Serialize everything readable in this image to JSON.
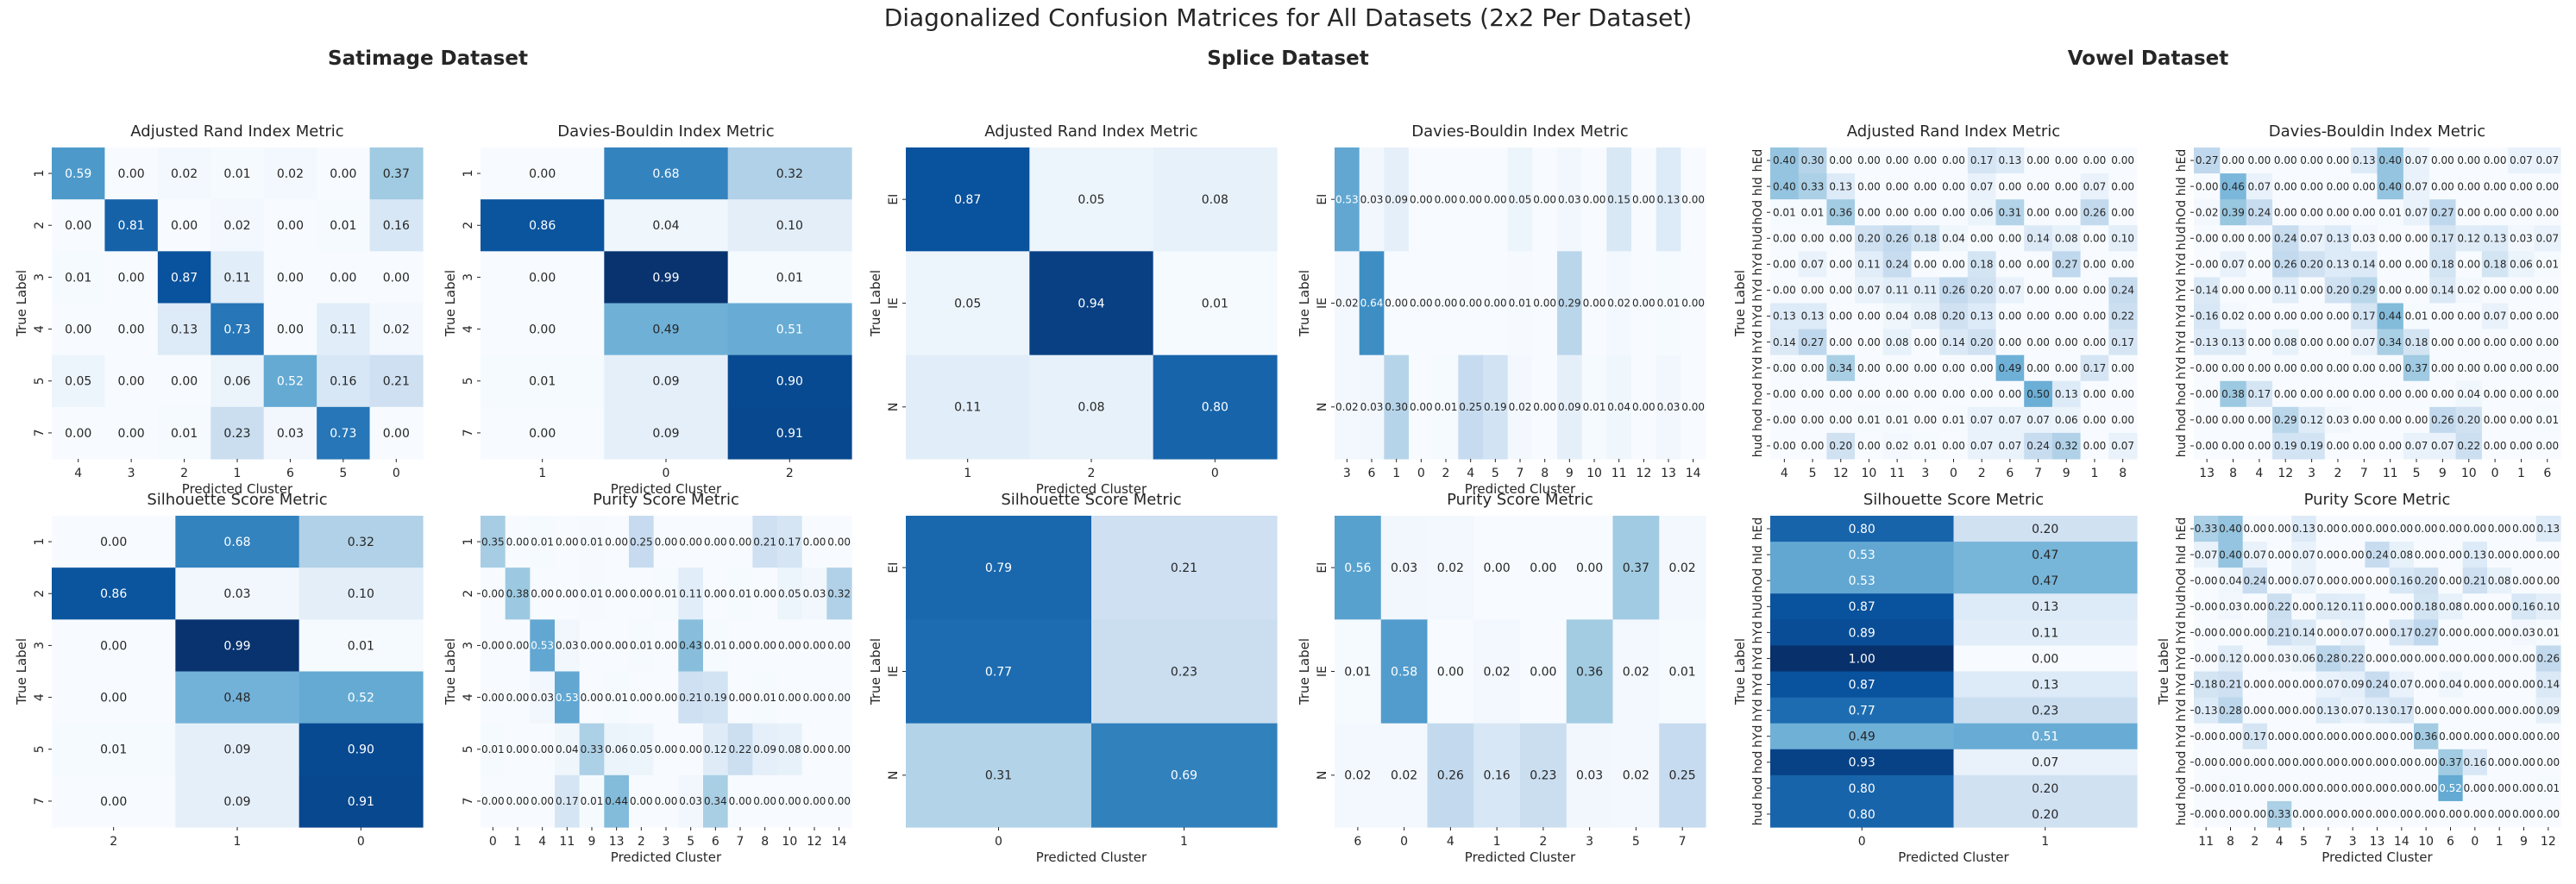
{
  "figure": {
    "title": "Diagonalized Confusion Matrices for All Datasets (2x2 Per Dataset)"
  },
  "datasets": [
    {
      "title": "Satimage Dataset"
    },
    {
      "title": "Splice Dataset"
    },
    {
      "title": "Vowel Dataset"
    }
  ],
  "colormap": {
    "name": "Blues",
    "stops": [
      "#f7fbff",
      "#deebf7",
      "#c6dbef",
      "#9ecae1",
      "#6baed6",
      "#4292c6",
      "#2171b5",
      "#08519c",
      "#08306b"
    ],
    "text_light": "#ffffff",
    "text_dark": "#262626"
  },
  "chart_data": [
    {
      "type": "heatmap",
      "dataset": "Satimage Dataset",
      "title": "Adjusted Rand Index Metric",
      "xlabel": "Predicted Cluster",
      "ylabel": "True Label",
      "x_ticks": [
        "4",
        "3",
        "2",
        "1",
        "6",
        "5",
        "0"
      ],
      "y_ticks": [
        "1",
        "2",
        "3",
        "4",
        "5",
        "7"
      ],
      "values": [
        [
          0.59,
          0.0,
          0.02,
          0.01,
          0.02,
          0.0,
          0.37
        ],
        [
          0.0,
          0.81,
          0.0,
          0.02,
          0.0,
          0.01,
          0.16
        ],
        [
          0.01,
          0.0,
          0.87,
          0.11,
          0.0,
          0.0,
          0.0
        ],
        [
          0.0,
          0.0,
          0.13,
          0.73,
          0.0,
          0.11,
          0.02
        ],
        [
          0.05,
          0.0,
          0.0,
          0.06,
          0.52,
          0.16,
          0.21
        ],
        [
          0.0,
          0.0,
          0.01,
          0.23,
          0.03,
          0.73,
          0.0
        ]
      ]
    },
    {
      "type": "heatmap",
      "dataset": "Satimage Dataset",
      "title": "Davies-Bouldin Index Metric",
      "xlabel": "Predicted Cluster",
      "ylabel": "True Label",
      "x_ticks": [
        "1",
        "0",
        "2"
      ],
      "y_ticks": [
        "1",
        "2",
        "3",
        "4",
        "5",
        "7"
      ],
      "values": [
        [
          0.0,
          0.68,
          0.32
        ],
        [
          0.86,
          0.04,
          0.1
        ],
        [
          0.0,
          0.99,
          0.01
        ],
        [
          0.0,
          0.49,
          0.51
        ],
        [
          0.01,
          0.09,
          0.9
        ],
        [
          0.0,
          0.09,
          0.91
        ]
      ]
    },
    {
      "type": "heatmap",
      "dataset": "Splice Dataset",
      "title": "Adjusted Rand Index Metric",
      "xlabel": "Predicted Cluster",
      "ylabel": "True Label",
      "x_ticks": [
        "1",
        "2",
        "0"
      ],
      "y_ticks": [
        "EI",
        "IE",
        "N"
      ],
      "values": [
        [
          0.87,
          0.05,
          0.08
        ],
        [
          0.05,
          0.94,
          0.01
        ],
        [
          0.11,
          0.08,
          0.8
        ]
      ]
    },
    {
      "type": "heatmap",
      "dataset": "Splice Dataset",
      "title": "Davies-Bouldin Index Metric",
      "xlabel": "Predicted Cluster",
      "ylabel": "True Label",
      "x_ticks": [
        "3",
        "6",
        "1",
        "0",
        "2",
        "4",
        "5",
        "7",
        "8",
        "9",
        "10",
        "11",
        "12",
        "13",
        "14"
      ],
      "y_ticks": [
        "EI",
        "IE",
        "N"
      ],
      "values": [
        [
          0.53,
          0.03,
          0.09,
          0.0,
          0.0,
          0.0,
          0.0,
          0.05,
          0.0,
          0.03,
          0.0,
          0.15,
          0.0,
          0.13,
          0.0
        ],
        [
          0.02,
          0.64,
          0.0,
          0.0,
          0.0,
          0.0,
          0.0,
          0.01,
          0.0,
          0.29,
          0.0,
          0.02,
          0.0,
          0.01,
          0.0
        ],
        [
          0.02,
          0.03,
          0.3,
          0.0,
          0.01,
          0.25,
          0.19,
          0.02,
          0.0,
          0.09,
          0.01,
          0.04,
          0.0,
          0.03,
          0.0
        ]
      ]
    },
    {
      "type": "heatmap",
      "dataset": "Vowel Dataset",
      "title": "Adjusted Rand Index Metric",
      "xlabel": "",
      "ylabel": "True Label",
      "x_ticks": [
        "4",
        "5",
        "12",
        "10",
        "11",
        "3",
        "0",
        "2",
        "6",
        "7",
        "9",
        "1",
        "8"
      ],
      "y_ticks": [
        "hEd",
        "hId",
        "hOd",
        "hUd",
        "hYd",
        "hYd",
        "hYd",
        "hYd",
        "hYd",
        "hod",
        "hod",
        "hud"
      ],
      "values": [
        [
          0.4,
          0.3,
          0.0,
          0.0,
          0.0,
          0.0,
          0.0,
          0.17,
          0.13,
          0.0,
          0.0,
          0.0,
          0.0
        ],
        [
          0.4,
          0.33,
          0.13,
          0.0,
          0.0,
          0.0,
          0.0,
          0.07,
          0.0,
          0.0,
          0.0,
          0.07,
          0.0
        ],
        [
          0.01,
          0.01,
          0.36,
          0.0,
          0.0,
          0.0,
          0.0,
          0.06,
          0.31,
          0.0,
          0.0,
          0.26,
          0.0
        ],
        [
          0.0,
          0.0,
          0.0,
          0.2,
          0.26,
          0.18,
          0.04,
          0.0,
          0.0,
          0.14,
          0.08,
          0.0,
          0.1
        ],
        [
          0.0,
          0.07,
          0.0,
          0.11,
          0.24,
          0.0,
          0.0,
          0.18,
          0.0,
          0.0,
          0.27,
          0.0,
          0.0
        ],
        [
          0.0,
          0.0,
          0.0,
          0.07,
          0.11,
          0.11,
          0.26,
          0.2,
          0.07,
          0.0,
          0.0,
          0.0,
          0.24
        ],
        [
          0.13,
          0.13,
          0.0,
          0.0,
          0.04,
          0.08,
          0.2,
          0.13,
          0.0,
          0.0,
          0.0,
          0.0,
          0.22
        ],
        [
          0.14,
          0.27,
          0.0,
          0.0,
          0.08,
          0.0,
          0.14,
          0.2,
          0.0,
          0.0,
          0.0,
          0.0,
          0.17
        ],
        [
          0.0,
          0.0,
          0.34,
          0.0,
          0.0,
          0.0,
          0.0,
          0.0,
          0.49,
          0.0,
          0.0,
          0.17,
          0.0
        ],
        [
          0.0,
          0.0,
          0.0,
          0.0,
          0.0,
          0.0,
          0.0,
          0.0,
          0.0,
          0.5,
          0.13,
          0.0,
          0.0
        ],
        [
          0.0,
          0.0,
          0.0,
          0.01,
          0.01,
          0.0,
          0.01,
          0.07,
          0.07,
          0.07,
          0.06,
          0.0,
          0.0
        ],
        [
          0.0,
          0.0,
          0.2,
          0.0,
          0.02,
          0.01,
          0.0,
          0.07,
          0.07,
          0.24,
          0.32,
          0.0,
          0.07
        ]
      ]
    },
    {
      "type": "heatmap",
      "dataset": "Vowel Dataset",
      "title": "Davies-Bouldin Index Metric",
      "xlabel": "",
      "ylabel": "",
      "x_ticks": [
        "13",
        "8",
        "4",
        "12",
        "3",
        "2",
        "7",
        "11",
        "5",
        "9",
        "10",
        "0",
        "1",
        "6"
      ],
      "y_ticks": [
        "hEd",
        "hId",
        "hOd",
        "hUd",
        "hYd",
        "hYd",
        "hYd",
        "hYd",
        "hYd",
        "hod",
        "hod",
        "hud"
      ],
      "values": [
        [
          0.27,
          0.0,
          0.0,
          0.0,
          0.0,
          0.0,
          0.13,
          0.4,
          0.07,
          0.0,
          0.0,
          0.0,
          0.07,
          0.07
        ],
        [
          0.0,
          0.46,
          0.07,
          0.0,
          0.0,
          0.0,
          0.0,
          0.4,
          0.07,
          0.0,
          0.0,
          0.0,
          0.0,
          0.0
        ],
        [
          0.02,
          0.39,
          0.24,
          0.0,
          0.0,
          0.0,
          0.0,
          0.01,
          0.07,
          0.27,
          0.0,
          0.0,
          0.0,
          0.0
        ],
        [
          0.0,
          0.0,
          0.0,
          0.24,
          0.07,
          0.13,
          0.03,
          0.0,
          0.0,
          0.17,
          0.12,
          0.13,
          0.03,
          0.07
        ],
        [
          0.0,
          0.07,
          0.0,
          0.26,
          0.2,
          0.13,
          0.14,
          0.0,
          0.0,
          0.18,
          0.0,
          0.18,
          0.06,
          0.01
        ],
        [
          0.14,
          0.0,
          0.0,
          0.11,
          0.0,
          0.2,
          0.29,
          0.0,
          0.0,
          0.14,
          0.02,
          0.0,
          0.0,
          0.0
        ],
        [
          0.16,
          0.02,
          0.0,
          0.0,
          0.0,
          0.0,
          0.17,
          0.44,
          0.01,
          0.0,
          0.0,
          0.07,
          0.0,
          0.0
        ],
        [
          0.13,
          0.13,
          0.0,
          0.08,
          0.0,
          0.0,
          0.07,
          0.34,
          0.18,
          0.0,
          0.0,
          0.0,
          0.0,
          0.0
        ],
        [
          0.0,
          0.0,
          0.0,
          0.0,
          0.0,
          0.0,
          0.0,
          0.0,
          0.37,
          0.0,
          0.0,
          0.0,
          0.0,
          0.0
        ],
        [
          0.0,
          0.38,
          0.17,
          0.0,
          0.0,
          0.0,
          0.0,
          0.0,
          0.0,
          0.0,
          0.04,
          0.0,
          0.0,
          0.0
        ],
        [
          0.0,
          0.0,
          0.0,
          0.29,
          0.12,
          0.03,
          0.0,
          0.0,
          0.0,
          0.26,
          0.2,
          0.0,
          0.0,
          0.01
        ],
        [
          0.0,
          0.0,
          0.0,
          0.19,
          0.19,
          0.0,
          0.0,
          0.0,
          0.07,
          0.07,
          0.22,
          0.0,
          0.0,
          0.0
        ]
      ]
    },
    {
      "type": "heatmap",
      "dataset": "Satimage Dataset",
      "title": "Silhouette Score Metric",
      "xlabel": "",
      "ylabel": "True Label",
      "x_ticks": [
        "2",
        "1",
        "0"
      ],
      "y_ticks": [
        "1",
        "2",
        "3",
        "4",
        "5",
        "7"
      ],
      "values": [
        [
          0.0,
          0.68,
          0.32
        ],
        [
          0.86,
          0.03,
          0.1
        ],
        [
          0.0,
          0.99,
          0.01
        ],
        [
          0.0,
          0.48,
          0.52
        ],
        [
          0.01,
          0.09,
          0.9
        ],
        [
          0.0,
          0.09,
          0.91
        ]
      ]
    },
    {
      "type": "heatmap",
      "dataset": "Satimage Dataset",
      "title": "Purity Score Metric",
      "xlabel": "Predicted Cluster",
      "ylabel": "True Label",
      "x_ticks": [
        "0",
        "1",
        "4",
        "11",
        "9",
        "13",
        "2",
        "3",
        "5",
        "6",
        "7",
        "8",
        "10",
        "12",
        "14"
      ],
      "y_ticks": [
        "1",
        "2",
        "3",
        "4",
        "5",
        "7"
      ],
      "values": [
        [
          0.35,
          0.0,
          0.01,
          0.0,
          0.01,
          0.0,
          0.25,
          0.0,
          0.0,
          0.0,
          0.0,
          0.21,
          0.17,
          0.0,
          0.0
        ],
        [
          0.0,
          0.38,
          0.0,
          0.0,
          0.01,
          0.0,
          0.0,
          0.01,
          0.11,
          0.0,
          0.01,
          0.0,
          0.05,
          0.03,
          0.32
        ],
        [
          0.0,
          0.0,
          0.53,
          0.03,
          0.0,
          0.0,
          0.01,
          0.0,
          0.43,
          0.01,
          0.0,
          0.0,
          0.0,
          0.0,
          0.0
        ],
        [
          0.0,
          0.0,
          0.03,
          0.53,
          0.0,
          0.01,
          0.0,
          0.0,
          0.21,
          0.19,
          0.0,
          0.01,
          0.0,
          0.0,
          0.0
        ],
        [
          0.01,
          0.0,
          0.0,
          0.04,
          0.33,
          0.06,
          0.05,
          0.0,
          0.0,
          0.12,
          0.22,
          0.09,
          0.08,
          0.0,
          0.0
        ],
        [
          0.0,
          0.0,
          0.0,
          0.17,
          0.01,
          0.44,
          0.0,
          0.0,
          0.03,
          0.34,
          0.0,
          0.0,
          0.0,
          0.0,
          0.0
        ]
      ]
    },
    {
      "type": "heatmap",
      "dataset": "Splice Dataset",
      "title": "Silhouette Score Metric",
      "xlabel": "Predicted Cluster",
      "ylabel": "True Label",
      "x_ticks": [
        "0",
        "1"
      ],
      "y_ticks": [
        "EI",
        "IE",
        "N"
      ],
      "values": [
        [
          0.79,
          0.21
        ],
        [
          0.77,
          0.23
        ],
        [
          0.31,
          0.69
        ]
      ]
    },
    {
      "type": "heatmap",
      "dataset": "Splice Dataset",
      "title": "Purity Score Metric",
      "xlabel": "Predicted Cluster",
      "ylabel": "True Label",
      "x_ticks": [
        "6",
        "0",
        "4",
        "1",
        "2",
        "3",
        "5",
        "7"
      ],
      "y_ticks": [
        "EI",
        "IE",
        "N"
      ],
      "values": [
        [
          0.56,
          0.03,
          0.02,
          0.0,
          0.0,
          0.0,
          0.37,
          0.02
        ],
        [
          0.01,
          0.58,
          0.0,
          0.02,
          0.0,
          0.36,
          0.02,
          0.01
        ],
        [
          0.02,
          0.02,
          0.26,
          0.16,
          0.23,
          0.03,
          0.02,
          0.25
        ]
      ]
    },
    {
      "type": "heatmap",
      "dataset": "Vowel Dataset",
      "title": "Silhouette Score Metric",
      "xlabel": "Predicted Cluster",
      "ylabel": "True Label",
      "x_ticks": [
        "0",
        "1"
      ],
      "y_ticks": [
        "hEd",
        "hId",
        "hOd",
        "hUd",
        "hYd",
        "hYd",
        "hYd",
        "hYd",
        "hYd",
        "hod",
        "hod",
        "hud"
      ],
      "values": [
        [
          0.8,
          0.2
        ],
        [
          0.53,
          0.47
        ],
        [
          0.53,
          0.47
        ],
        [
          0.87,
          0.13
        ],
        [
          0.89,
          0.11
        ],
        [
          1.0,
          0.0
        ],
        [
          0.87,
          0.13
        ],
        [
          0.77,
          0.23
        ],
        [
          0.49,
          0.51
        ],
        [
          0.93,
          0.07
        ],
        [
          0.8,
          0.2
        ],
        [
          0.8,
          0.2
        ]
      ]
    },
    {
      "type": "heatmap",
      "dataset": "Vowel Dataset",
      "title": "Purity Score Metric",
      "xlabel": "Predicted Cluster",
      "ylabel": "True Label",
      "x_ticks": [
        "11",
        "8",
        "2",
        "4",
        "5",
        "7",
        "3",
        "13",
        "14",
        "10",
        "6",
        "0",
        "1",
        "9",
        "12"
      ],
      "y_ticks": [
        "hEd",
        "hId",
        "hOd",
        "hUd",
        "hYd",
        "hYd",
        "hYd",
        "hYd",
        "hYd",
        "hod",
        "hod",
        "hud"
      ],
      "values": [
        [
          0.33,
          0.4,
          0.0,
          0.0,
          0.13,
          0.0,
          0.0,
          0.0,
          0.0,
          0.0,
          0.0,
          0.0,
          0.0,
          0.0,
          0.13
        ],
        [
          0.07,
          0.4,
          0.07,
          0.0,
          0.07,
          0.0,
          0.0,
          0.24,
          0.08,
          0.0,
          0.0,
          0.13,
          0.0,
          0.0,
          0.0
        ],
        [
          0.0,
          0.04,
          0.24,
          0.0,
          0.07,
          0.0,
          0.0,
          0.0,
          0.16,
          0.2,
          0.0,
          0.21,
          0.08,
          0.0,
          0.0
        ],
        [
          0.0,
          0.03,
          0.0,
          0.22,
          0.0,
          0.12,
          0.11,
          0.0,
          0.0,
          0.18,
          0.08,
          0.0,
          0.0,
          0.16,
          0.1
        ],
        [
          0.0,
          0.0,
          0.0,
          0.21,
          0.14,
          0.0,
          0.07,
          0.0,
          0.17,
          0.27,
          0.0,
          0.0,
          0.0,
          0.03,
          0.01
        ],
        [
          0.0,
          0.12,
          0.0,
          0.03,
          0.06,
          0.28,
          0.22,
          0.0,
          0.0,
          0.0,
          0.0,
          0.0,
          0.0,
          0.0,
          0.26
        ],
        [
          0.18,
          0.21,
          0.0,
          0.0,
          0.0,
          0.07,
          0.09,
          0.24,
          0.07,
          0.0,
          0.04,
          0.0,
          0.0,
          0.0,
          0.14
        ],
        [
          0.13,
          0.28,
          0.0,
          0.0,
          0.0,
          0.13,
          0.07,
          0.13,
          0.17,
          0.0,
          0.0,
          0.0,
          0.0,
          0.0,
          0.09
        ],
        [
          0.0,
          0.0,
          0.17,
          0.0,
          0.0,
          0.0,
          0.0,
          0.0,
          0.0,
          0.36,
          0.0,
          0.0,
          0.0,
          0.0,
          0.0
        ],
        [
          0.0,
          0.0,
          0.0,
          0.0,
          0.0,
          0.0,
          0.0,
          0.0,
          0.0,
          0.0,
          0.37,
          0.16,
          0.0,
          0.0,
          0.0
        ],
        [
          0.0,
          0.01,
          0.0,
          0.0,
          0.0,
          0.0,
          0.0,
          0.0,
          0.0,
          0.0,
          0.52,
          0.0,
          0.0,
          0.0,
          0.01
        ],
        [
          0.0,
          0.0,
          0.0,
          0.33,
          0.0,
          0.0,
          0.0,
          0.0,
          0.0,
          0.0,
          0.0,
          0.0,
          0.0,
          0.0,
          0.0
        ]
      ]
    }
  ]
}
